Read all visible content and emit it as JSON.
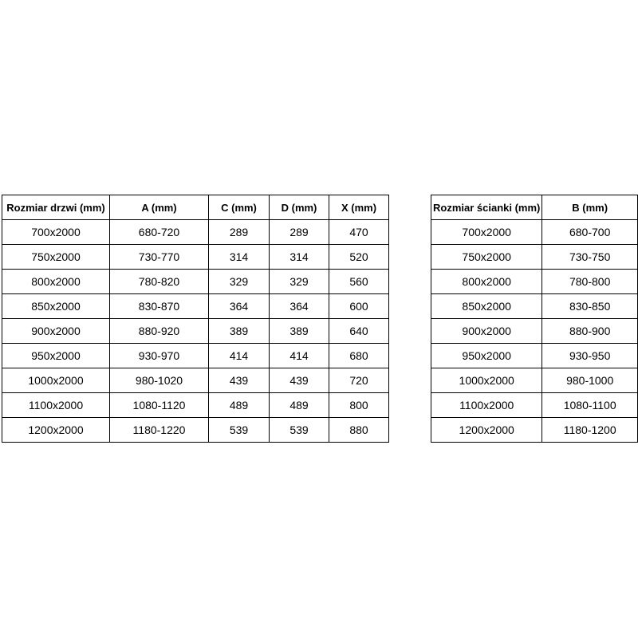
{
  "page": {
    "background_color": "#ffffff",
    "text_color": "#000000",
    "border_color": "#000000"
  },
  "tables": [
    {
      "title": "door-dimensions",
      "headers": [
        "Rozmiar drzwi (mm)",
        "A (mm)",
        "C (mm)",
        "D (mm)",
        "X (mm)"
      ],
      "rows": [
        [
          "700x2000",
          "680-720",
          "289",
          "289",
          "470"
        ],
        [
          "750x2000",
          "730-770",
          "314",
          "314",
          "520"
        ],
        [
          "800x2000",
          "780-820",
          "329",
          "329",
          "560"
        ],
        [
          "850x2000",
          "830-870",
          "364",
          "364",
          "600"
        ],
        [
          "900x2000",
          "880-920",
          "389",
          "389",
          "640"
        ],
        [
          "950x2000",
          "930-970",
          "414",
          "414",
          "680"
        ],
        [
          "1000x2000",
          "980-1020",
          "439",
          "439",
          "720"
        ],
        [
          "1100x2000",
          "1080-1120",
          "489",
          "489",
          "800"
        ],
        [
          "1200x2000",
          "1180-1220",
          "539",
          "539",
          "880"
        ]
      ]
    },
    {
      "title": "wall-panel-dimensions",
      "headers": [
        "Rozmiar ścianki (mm)",
        "B (mm)"
      ],
      "rows": [
        [
          "700x2000",
          "680-700"
        ],
        [
          "750x2000",
          "730-750"
        ],
        [
          "800x2000",
          "780-800"
        ],
        [
          "850x2000",
          "830-850"
        ],
        [
          "900x2000",
          "880-900"
        ],
        [
          "950x2000",
          "930-950"
        ],
        [
          "1000x2000",
          "980-1000"
        ],
        [
          "1100x2000",
          "1080-1100"
        ],
        [
          "1200x2000",
          "1180-1200"
        ]
      ]
    }
  ]
}
